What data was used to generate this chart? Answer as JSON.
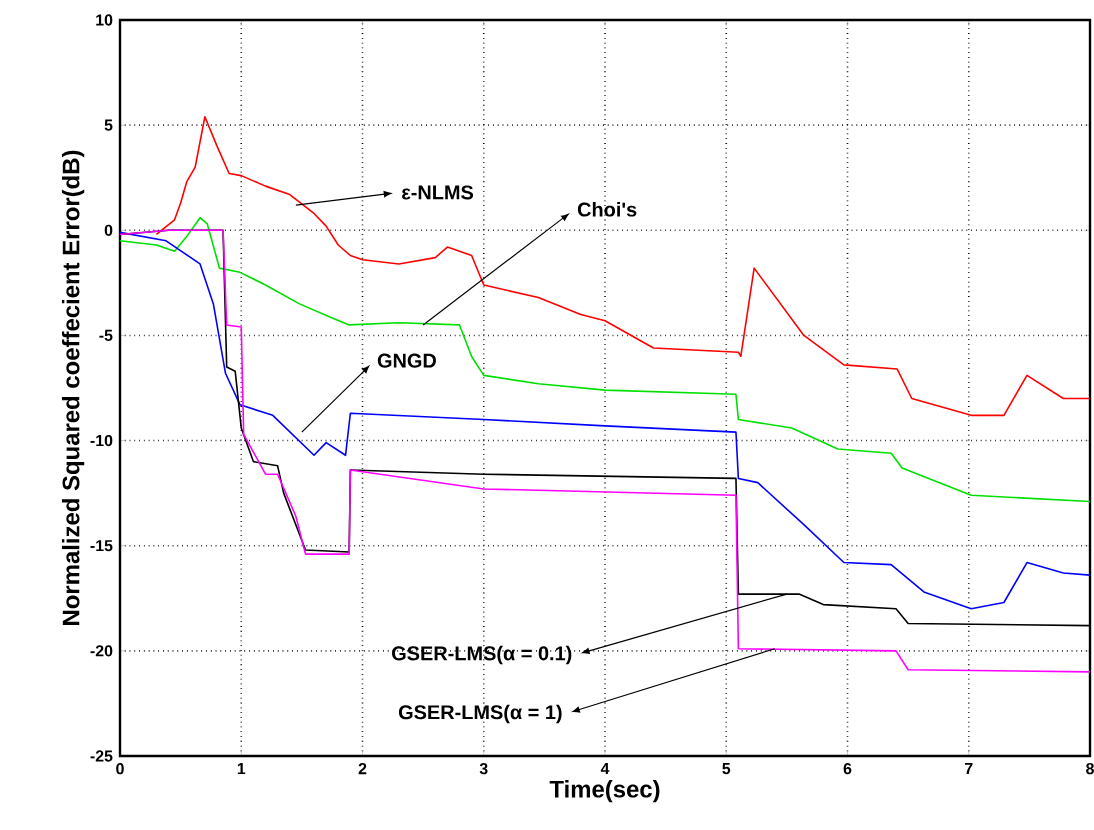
{
  "chart_data": {
    "type": "line",
    "xlabel": "Time(sec)",
    "ylabel": "Normalized Squared coeffecient Error(dB)",
    "xlim": [
      0,
      8
    ],
    "ylim": [
      -25,
      10
    ],
    "xticks": [
      0,
      1,
      2,
      3,
      4,
      5,
      6,
      7,
      8
    ],
    "yticks": [
      -25,
      -20,
      -15,
      -10,
      -5,
      0,
      5,
      10
    ],
    "grid": true,
    "line_style": "solid",
    "annotations": [
      {
        "text": "ε-NLMS",
        "x": 1.45,
        "y": 1.2
      },
      {
        "text": "Choi's",
        "x": 2.5,
        "y": -4.5
      },
      {
        "text": "GNGD",
        "x": 1.5,
        "y": -9.6
      },
      {
        "text": "GSER-LMS(α = 0.1)",
        "x": 5.5,
        "y": -17.3
      },
      {
        "text": "GSER-LMS(α = 1)",
        "x": 5.4,
        "y": -19.9
      }
    ],
    "series": [
      {
        "color": "#ff0000",
        "x": [
          0.3,
          0.45,
          0.5,
          0.55,
          0.62,
          0.7,
          0.8,
          0.9,
          1.0,
          1.2,
          1.4,
          1.6,
          1.7,
          1.8,
          1.9,
          2.0,
          2.3,
          2.6,
          2.7,
          2.9,
          3.0,
          3.45,
          3.8,
          4.0,
          4.4,
          5.1,
          5.12,
          5.23,
          5.64,
          5.97,
          6.41,
          6.53,
          7.02,
          7.29,
          7.48,
          7.78,
          8
        ],
        "values": [
          -0.2,
          0.5,
          1.3,
          2.3,
          3,
          5.4,
          4,
          2.7,
          2.6,
          2.1,
          1.7,
          0.8,
          0.2,
          -0.7,
          -1.2,
          -1.4,
          -1.6,
          -1.3,
          -0.8,
          -1.2,
          -2.6,
          -3.2,
          -4.0,
          -4.3,
          -5.6,
          -5.8,
          -6.0,
          -1.8,
          -5.0,
          -6.4,
          -6.6,
          -8.0,
          -8.8,
          -8.8,
          -6.9,
          -8.0,
          -8.0
        ]
      },
      {
        "color": "#00e000",
        "x": [
          0,
          0.3,
          0.45,
          0.55,
          0.66,
          0.72,
          0.82,
          0.99,
          1.2,
          1.48,
          1.76,
          1.89,
          2.3,
          2.8,
          2.9,
          3.0,
          3.45,
          4.0,
          5.08,
          5.1,
          5.54,
          5.92,
          6.36,
          6.45,
          7.02,
          8
        ],
        "values": [
          -0.5,
          -0.7,
          -1.0,
          -0.3,
          0.6,
          0.3,
          -1.8,
          -2.0,
          -2.6,
          -3.5,
          -4.2,
          -4.5,
          -4.4,
          -4.5,
          -6.0,
          -6.9,
          -7.3,
          -7.6,
          -7.8,
          -9.0,
          -9.4,
          -10.4,
          -10.6,
          -11.3,
          -12.6,
          -12.9
        ]
      },
      {
        "color": "#0000ff",
        "x": [
          0,
          0.38,
          0.66,
          0.77,
          0.87,
          0.99,
          1.26,
          1.6,
          1.7,
          1.86,
          1.9,
          3.0,
          4.0,
          5.08,
          5.1,
          5.26,
          5.64,
          5.97,
          6.36,
          6.63,
          7.02,
          7.29,
          7.48,
          7.78,
          8
        ],
        "values": [
          -0.1,
          -0.5,
          -1.6,
          -3.5,
          -6.8,
          -8.3,
          -8.8,
          -10.7,
          -10.1,
          -10.7,
          -8.7,
          -9.0,
          -9.3,
          -9.6,
          -11.8,
          -12.0,
          -14.0,
          -15.8,
          -15.9,
          -17.2,
          -18.0,
          -17.7,
          -15.8,
          -16.3,
          -16.4
        ]
      },
      {
        "color": "#000000",
        "x": [
          0,
          0.4,
          0.85,
          0.88,
          0.95,
          1.0,
          1.1,
          1.3,
          1.35,
          1.53,
          1.89,
          1.9,
          3.0,
          5.08,
          5.1,
          5.6,
          5.8,
          6.4,
          6.5,
          8
        ],
        "values": [
          -0.2,
          0,
          0,
          -6.5,
          -6.7,
          -9.4,
          -11.0,
          -11.2,
          -12.5,
          -15.2,
          -15.3,
          -11.4,
          -11.6,
          -11.8,
          -17.3,
          -17.3,
          -17.8,
          -18.0,
          -18.7,
          -18.8
        ]
      },
      {
        "color": "#ff00ff",
        "x": [
          0,
          0.4,
          0.85,
          0.88,
          1.0,
          1.02,
          1.2,
          1.3,
          1.45,
          1.53,
          1.89,
          1.9,
          3.0,
          5.08,
          5.1,
          6.4,
          6.5,
          8
        ],
        "values": [
          -0.2,
          0,
          0,
          -4.5,
          -4.6,
          -9.7,
          -11.6,
          -11.6,
          -13.6,
          -15.4,
          -15.4,
          -11.4,
          -12.3,
          -12.6,
          -19.9,
          -20.0,
          -20.9,
          -21.0
        ]
      }
    ]
  }
}
